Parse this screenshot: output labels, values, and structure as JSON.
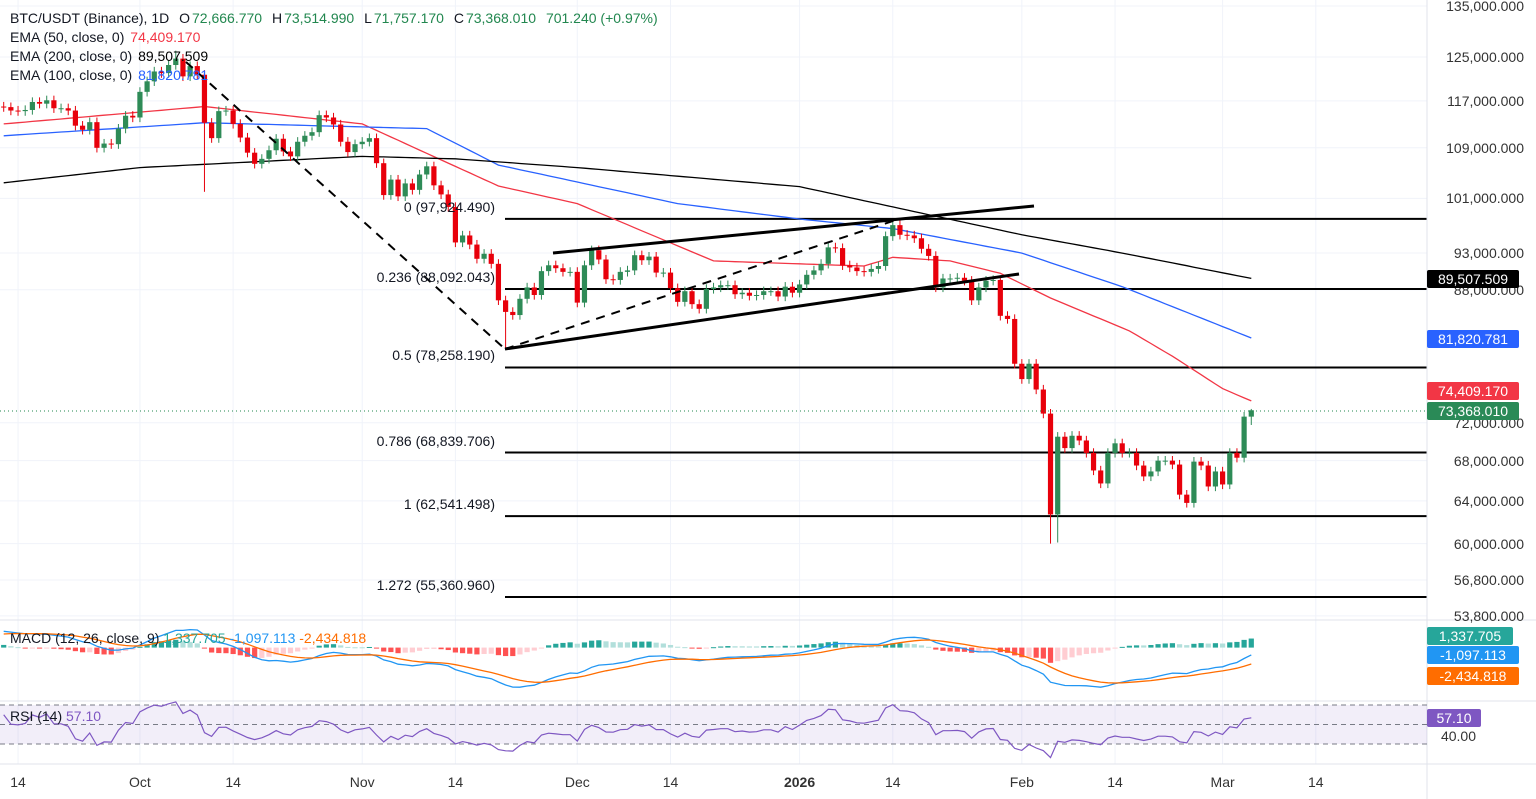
{
  "legend": {
    "symbol": "BTC/USDT (Binance), 1D",
    "open_label": "O",
    "open": "72,666.770",
    "high_label": "H",
    "high": "73,514.990",
    "low_label": "L",
    "low": "71,757.170",
    "close_label": "C",
    "close": "73,368.010",
    "change": "701.240 (+0.97%)",
    "ema50_label": "EMA (50, close, 0)",
    "ema50_value": "74,409.170",
    "ema200_label": "EMA (200, close, 0)",
    "ema200_value": "89,507.509",
    "ema100_label": "EMA (100, close, 0)",
    "ema100_value": "81,820.781"
  },
  "macd_legend": {
    "label": "MACD (12, 26, close, 9)",
    "histogram": "1,337.705",
    "macd": "-1,097.113",
    "signal": "-2,434.818"
  },
  "rsi_legend": {
    "label": "RSI (14)",
    "value": "57.10"
  },
  "price_axis": [
    "135,000.000",
    "125,000.000",
    "117,000.000",
    "109,000.000",
    "101,000.000",
    "93,000.000",
    "88,000.000",
    "72,000.000",
    "68,000.000",
    "64,000.000",
    "60,000.000",
    "56,800.000",
    "53,800.000"
  ],
  "price_tags": {
    "ema200": "89,507.509",
    "ema100": "81,820.781",
    "ema50": "74,409.170",
    "last": "73,368.010",
    "macd_hist": "1,337.705",
    "macd": "-1,097.113",
    "macd_signal": "-2,434.818",
    "rsi": "57.10",
    "rsi_axis": "40.00"
  },
  "time_axis": [
    "14",
    "Oct",
    "14",
    "Nov",
    "14",
    "Dec",
    "14",
    "2026",
    "14",
    "Feb",
    "14",
    "Mar",
    "14"
  ],
  "fibonacci": [
    {
      "label": "0 (97,924.490)",
      "value": 97924.49
    },
    {
      "label": "0.236 (88,092.043)",
      "value": 88092.043
    },
    {
      "label": "0.5 (78,258.190)",
      "value": 78258.19
    },
    {
      "label": "0.786 (68,839.706)",
      "value": 68839.706
    },
    {
      "label": "1 (62,541.498)",
      "value": 62541.498
    },
    {
      "label": "1.272 (55,360.960)",
      "value": 55360.96
    }
  ],
  "colors": {
    "up": "#2e8b57",
    "down": "#e8000b",
    "ema50": "#f23645",
    "ema100": "#2962ff",
    "ema200": "#000000",
    "macd": "#2196f3",
    "signal": "#ff6d00",
    "hist_up": "#26a69a",
    "hist_up_light": "#b2dfdb",
    "hist_down": "#ff5252",
    "hist_down_light": "#ffcdd2",
    "rsi": "#7e57c2"
  },
  "chart_data": {
    "type": "candlestick",
    "symbol": "BTC/USDT",
    "interval": "1D",
    "scale": "log",
    "ylim": [
      53800,
      135000
    ],
    "candles_by_month": [
      {
        "month": "2025-09",
        "from_day": 12,
        "close": [
          115900,
          115300,
          115200,
          115400,
          116800,
          116500,
          117100,
          115700,
          115700,
          115300,
          112700,
          112000,
          113300,
          109000,
          109700,
          109600,
          112200,
          114400,
          114100
        ]
      },
      {
        "month": "2025-10",
        "from_day": 1,
        "close": [
          118600,
          120500,
          122300,
          122000,
          123500,
          124700,
          121400,
          123300,
          121700,
          113200,
          110600,
          115200,
          115300,
          113000,
          110700,
          108200,
          106400,
          107200,
          108600,
          110500,
          108400,
          107600,
          110000,
          111000,
          111600,
          114500,
          114100,
          112900,
          110000,
          108300,
          109600
        ]
      },
      {
        "month": "2025-11",
        "from_day": 1,
        "close": [
          110000,
          110600,
          106500,
          101500,
          103900,
          101300,
          103300,
          102300,
          104700,
          106000,
          103000,
          101600,
          99700,
          94500,
          95500,
          94200,
          92200,
          92900,
          91500,
          86600,
          85100,
          84700,
          86800,
          88300,
          87300,
          90500,
          91300,
          90900,
          90400,
          90400
        ]
      },
      {
        "month": "2025-12",
        "from_day": 1,
        "close": [
          86300,
          91300,
          93400,
          92100,
          89400,
          89300,
          90400,
          90600,
          92700,
          92000,
          92500,
          90300,
          90300,
          88200,
          86400,
          87800,
          86100,
          85500,
          88100,
          88300,
          88600,
          88600,
          87400,
          87600,
          87200,
          87300,
          87800,
          87800,
          87100,
          88400,
          87600
        ]
      },
      {
        "month": "2026-01",
        "from_day": 1,
        "close": [
          88700,
          90000,
          90600,
          91500,
          93800,
          93700,
          91300,
          91000,
          90500,
          90400,
          90800,
          91200,
          95400,
          97000,
          95600,
          95500,
          95100,
          93600,
          92600,
          88300,
          89500,
          89500,
          89600,
          89200,
          86600,
          88300,
          89200,
          89300,
          84600,
          84200,
          78700
        ]
      },
      {
        "month": "2026-02",
        "from_day": 1,
        "close": [
          76900,
          78700,
          75700,
          73000,
          62700,
          70500,
          69300,
          70600,
          70100,
          68800,
          67000,
          65700,
          68800,
          69800,
          68800,
          68800,
          67500,
          66400,
          66900,
          68000,
          68000,
          67600,
          64600,
          63800,
          67900,
          67500,
          65400,
          66900
        ]
      },
      {
        "month": "2026-03",
        "from_day": 1,
        "close": [
          65600,
          68800,
          68300,
          72666.77,
          73368.01
        ]
      }
    ],
    "notable_wicks": [
      {
        "date": "2025-10-06",
        "high": 126200
      },
      {
        "date": "2025-10-10",
        "low": 102000
      },
      {
        "date": "2025-11-21",
        "low": 80600
      },
      {
        "date": "2026-02-05",
        "low": 60000
      },
      {
        "date": "2026-02-06",
        "low": 60100
      },
      {
        "date": "2026-03-05",
        "high": 73514.99,
        "low": 71757.17
      }
    ],
    "ema": [
      {
        "name": "EMA (50, close, 0)",
        "color_key": "ema50",
        "points": [
          [
            "2025-09-12",
            113000
          ],
          [
            "2025-10-10",
            116000
          ],
          [
            "2025-11-01",
            113000
          ],
          [
            "2025-11-20",
            102900
          ],
          [
            "2025-12-01",
            100200
          ],
          [
            "2025-12-20",
            91900
          ],
          [
            "2026-01-10",
            91200
          ],
          [
            "2026-01-14",
            92400
          ],
          [
            "2026-01-22",
            91900
          ],
          [
            "2026-01-29",
            90200
          ],
          [
            "2026-02-05",
            86900
          ],
          [
            "2026-02-16",
            82700
          ],
          [
            "2026-02-22",
            79600
          ],
          [
            "2026-03-01",
            75800
          ],
          [
            "2026-03-05",
            74409.17
          ]
        ]
      },
      {
        "name": "EMA (100, close, 0)",
        "color_key": "ema100",
        "points": [
          [
            "2025-09-12",
            111000
          ],
          [
            "2025-10-10",
            113200
          ],
          [
            "2025-11-10",
            112200
          ],
          [
            "2025-11-20",
            106200
          ],
          [
            "2025-12-15",
            100200
          ],
          [
            "2026-01-01",
            97900
          ],
          [
            "2026-01-14",
            96500
          ],
          [
            "2026-02-01",
            93000
          ],
          [
            "2026-02-15",
            88400
          ],
          [
            "2026-03-05",
            81820.781
          ]
        ]
      },
      {
        "name": "EMA (200, close, 0)",
        "color_key": "ema200",
        "points": [
          [
            "2025-09-12",
            103400
          ],
          [
            "2025-10-01",
            105800
          ],
          [
            "2025-11-01",
            107600
          ],
          [
            "2025-11-14",
            107200
          ],
          [
            "2025-12-01",
            105800
          ],
          [
            "2026-01-01",
            102800
          ],
          [
            "2026-01-14",
            99700
          ],
          [
            "2026-02-01",
            95600
          ],
          [
            "2026-02-15",
            93000
          ],
          [
            "2026-03-05",
            89507.509
          ]
        ]
      }
    ],
    "macd": {
      "fast": 12,
      "slow": 26,
      "signal": 9,
      "last_histogram": 1337.705,
      "last_macd": -1097.113,
      "last_signal": -2434.818
    },
    "rsi": {
      "period": 14,
      "last": 57.1,
      "bands": [
        70,
        50,
        30
      ]
    }
  }
}
